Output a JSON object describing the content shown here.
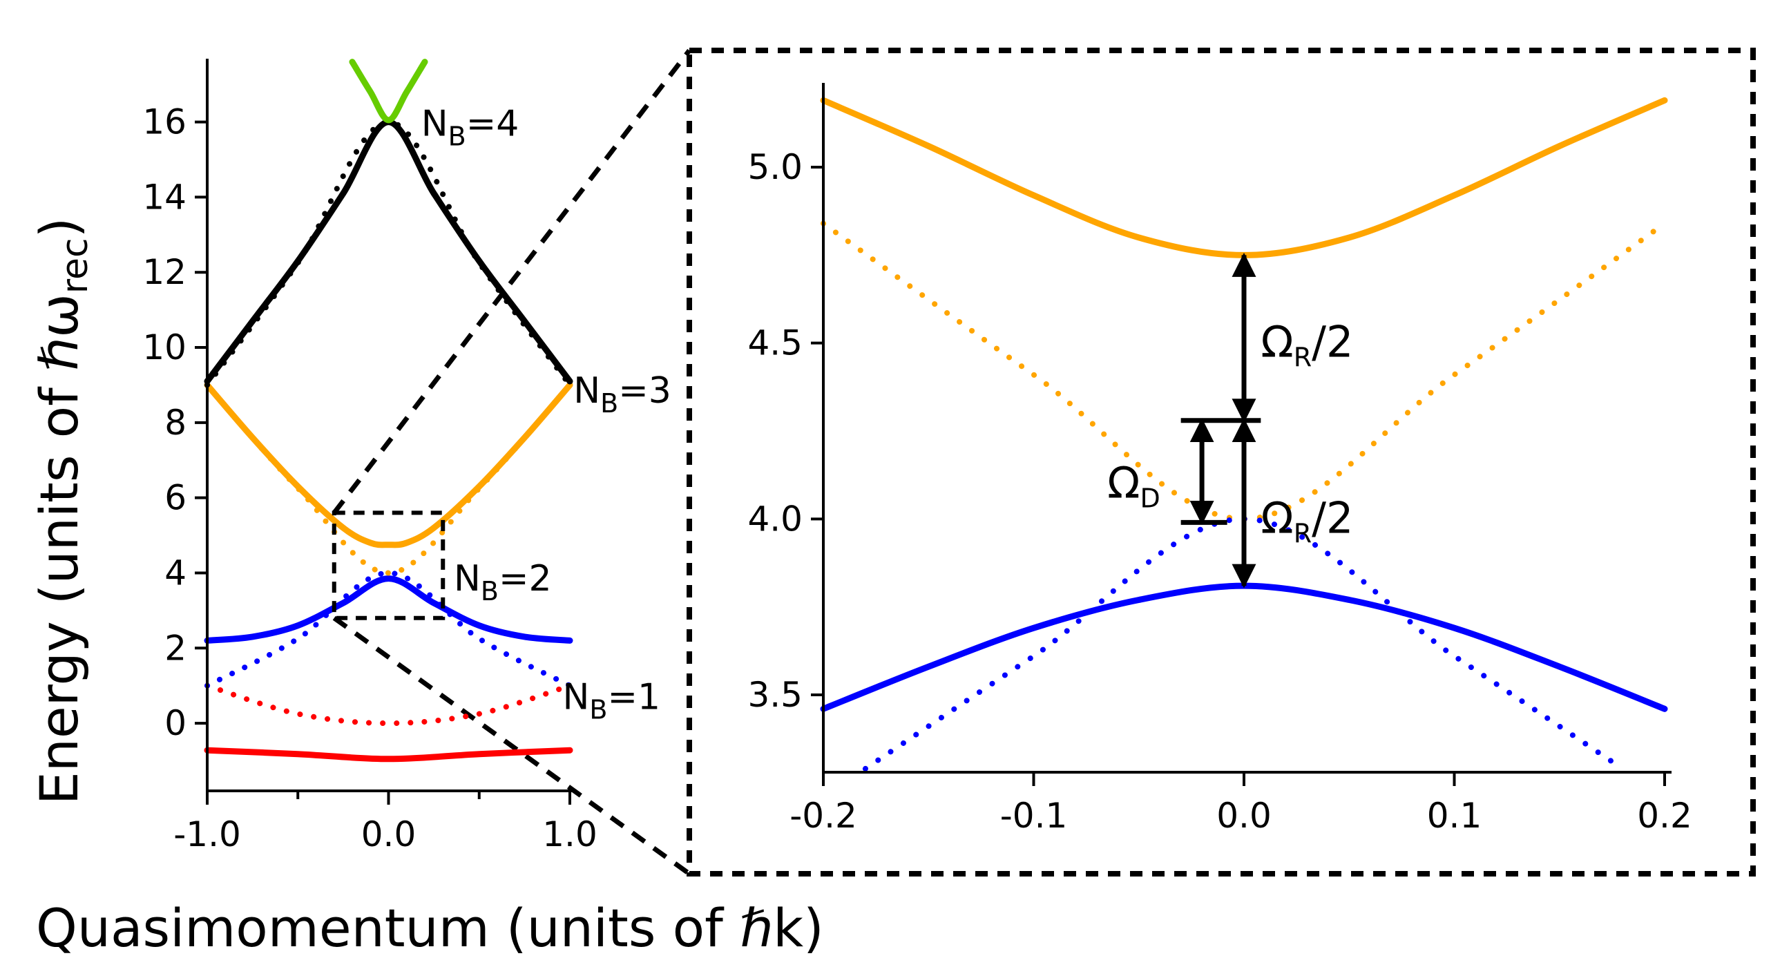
{
  "chart_data": [
    {
      "type": "line",
      "panel": "left",
      "xlabel": "Quasimomentum (units of ℏk)",
      "ylabel": "Energy (units of ℏω",
      "ylabel_subscript": "rec",
      "ylabel_close": ")",
      "xlim": [
        -1.0,
        1.0
      ],
      "ylim": [
        -1.8,
        17.5
      ],
      "xticks": [
        -1.0,
        0.0,
        1.0
      ],
      "xtick_labels": [
        "-1.0",
        "0.0",
        "1.0"
      ],
      "xminor_ticks": [
        -0.5,
        0.5
      ],
      "yticks": [
        0,
        2,
        4,
        6,
        8,
        10,
        12,
        14,
        16
      ],
      "ytick_labels": [
        "0",
        "2",
        "4",
        "6",
        "8",
        "10",
        "12",
        "14",
        "16"
      ],
      "series": [
        {
          "band": 1,
          "style": "solid",
          "color": "#ff0000",
          "x": [
            -1.0,
            -0.5,
            0.0,
            0.5,
            1.0
          ],
          "y": [
            -0.72,
            -0.82,
            -0.95,
            -0.82,
            -0.72
          ]
        },
        {
          "band": 1,
          "style": "dotted",
          "color": "#ff0000",
          "x": [
            -1.0,
            -0.5,
            0.0,
            0.5,
            1.0
          ],
          "y": [
            1.0,
            0.25,
            0.0,
            0.25,
            1.0
          ]
        },
        {
          "band": 2,
          "style": "solid",
          "color": "#0000ff",
          "x": [
            -1.0,
            -0.75,
            -0.5,
            -0.25,
            0.0,
            0.25,
            0.5,
            0.75,
            1.0
          ],
          "y": [
            2.2,
            2.3,
            2.6,
            3.2,
            3.85,
            3.2,
            2.6,
            2.3,
            2.2
          ]
        },
        {
          "band": 2,
          "style": "dotted",
          "color": "#0000ff",
          "x": [
            -1.0,
            -0.5,
            0.0,
            0.5,
            1.0
          ],
          "y": [
            1.0,
            2.25,
            4.0,
            2.25,
            1.0
          ]
        },
        {
          "band": 3,
          "style": "solid",
          "color": "#ffa500",
          "x": [
            -1.0,
            -0.75,
            -0.5,
            -0.25,
            -0.1,
            0.0,
            0.1,
            0.25,
            0.5,
            0.75,
            1.0
          ],
          "y": [
            9.0,
            7.6,
            6.3,
            5.2,
            4.8,
            4.75,
            4.8,
            5.2,
            6.3,
            7.6,
            9.0
          ]
        },
        {
          "band": 3,
          "style": "dotted",
          "color": "#ffa500",
          "x": [
            -1.0,
            -0.5,
            0.0,
            0.5,
            1.0
          ],
          "y": [
            9.0,
            6.25,
            4.0,
            6.25,
            9.0
          ]
        },
        {
          "band": 4,
          "style": "solid",
          "color": "#000000",
          "x": [
            -1.0,
            -0.75,
            -0.5,
            -0.25,
            0.0,
            0.25,
            0.5,
            0.75,
            1.0
          ],
          "y": [
            9.1,
            10.7,
            12.3,
            14.1,
            16.0,
            14.1,
            12.3,
            10.7,
            9.1
          ]
        },
        {
          "band": 4,
          "style": "dotted",
          "color": "#000000",
          "x": [
            -1.0,
            -0.5,
            0.0,
            0.5,
            1.0
          ],
          "y": [
            9.0,
            12.25,
            16.0,
            12.25,
            9.0
          ]
        },
        {
          "band": 5,
          "style": "solid",
          "color": "#66cc00",
          "x": [
            -0.2,
            -0.1,
            0.0,
            0.1,
            0.2
          ],
          "y": [
            17.6,
            16.8,
            16.05,
            16.8,
            17.6
          ]
        }
      ],
      "annotations": [
        {
          "base": "N",
          "sub": "B",
          "tail": "=4",
          "at": [
            0.18,
            16.0
          ]
        },
        {
          "base": "N",
          "sub": "B",
          "tail": "=3",
          "at": [
            1.02,
            8.9
          ]
        },
        {
          "base": "N",
          "sub": "B",
          "tail": "=2",
          "at": [
            0.36,
            3.9
          ]
        },
        {
          "base": "N",
          "sub": "B",
          "tail": "=1",
          "at": [
            0.96,
            0.75
          ]
        }
      ],
      "zoom_box": {
        "x": [
          -0.3,
          0.3
        ],
        "y": [
          2.8,
          5.6
        ]
      }
    },
    {
      "type": "line",
      "panel": "right-inset",
      "xlim": [
        -0.2,
        0.2
      ],
      "ylim": [
        3.28,
        5.22
      ],
      "xticks": [
        -0.2,
        -0.1,
        0.0,
        0.1,
        0.2
      ],
      "xtick_labels": [
        "-0.2",
        "-0.1",
        "0.0",
        "0.1",
        "0.2"
      ],
      "yticks": [
        3.5,
        4.0,
        4.5,
        5.0
      ],
      "ytick_labels": [
        "3.5",
        "4.0",
        "4.5",
        "5.0"
      ],
      "series": [
        {
          "style": "solid",
          "color": "#ffa500",
          "x": [
            -0.2,
            -0.15,
            -0.1,
            -0.05,
            0.0,
            0.05,
            0.1,
            0.15,
            0.2
          ],
          "y": [
            5.19,
            5.06,
            4.92,
            4.8,
            4.75,
            4.8,
            4.92,
            5.06,
            5.19
          ]
        },
        {
          "style": "dotted",
          "color": "#ffa500",
          "x": [
            -0.2,
            -0.1,
            0.0,
            0.1,
            0.2
          ],
          "y": [
            4.84,
            4.41,
            4.0,
            4.41,
            4.84
          ]
        },
        {
          "style": "solid",
          "color": "#0000ff",
          "x": [
            -0.2,
            -0.15,
            -0.1,
            -0.05,
            0.0,
            0.05,
            0.1,
            0.15,
            0.2
          ],
          "y": [
            3.46,
            3.58,
            3.69,
            3.77,
            3.81,
            3.77,
            3.69,
            3.58,
            3.46
          ]
        },
        {
          "style": "dotted",
          "color": "#0000ff",
          "x": [
            -0.18,
            -0.1,
            0.0,
            0.1,
            0.18
          ],
          "y": [
            3.29,
            3.61,
            4.0,
            3.61,
            3.29
          ]
        }
      ],
      "annotations": [
        {
          "symbol": "Ω",
          "sub": "R",
          "tail": "/2",
          "at": [
            0.008,
            4.5
          ]
        },
        {
          "symbol": "Ω",
          "sub": "R",
          "tail": "/2",
          "at": [
            0.008,
            4.0
          ]
        },
        {
          "symbol": "Ω",
          "sub": "D",
          "tail": "",
          "at": [
            -0.065,
            4.1
          ]
        }
      ]
    }
  ]
}
